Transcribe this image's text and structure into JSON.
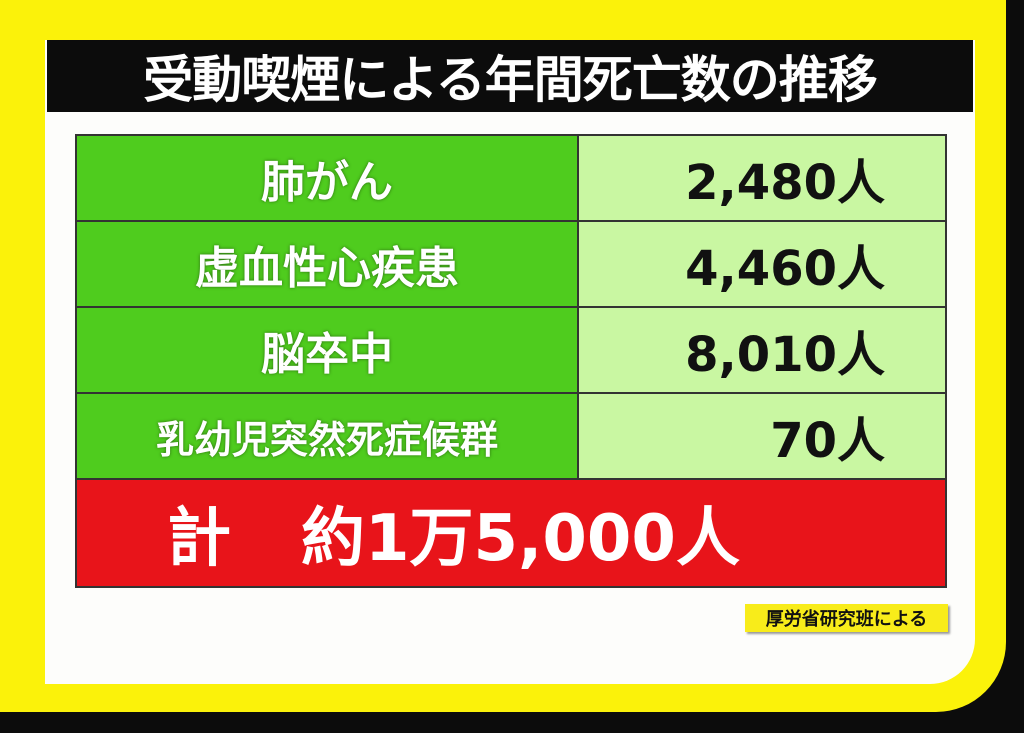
{
  "title": "受動喫煙による年間死亡数の推移",
  "chart_data": {
    "type": "table",
    "title": "受動喫煙による年間死亡数の推移",
    "rows": [
      {
        "label": "肺がん",
        "value": "2,480人"
      },
      {
        "label": "虚血性心疾患",
        "value": "4,460人"
      },
      {
        "label": "脳卒中",
        "value": "8,010人"
      },
      {
        "label": "乳幼児突然死症候群",
        "value": "70人"
      }
    ],
    "total": {
      "label": "計",
      "value": "約1万5,000人"
    }
  },
  "source": "厚労省研究班による",
  "colors": {
    "background": "#fbf20a",
    "label_cell": "#4fcc1e",
    "value_cell": "#c9f7a2",
    "total_row": "#e8141a",
    "title_bar": "#0c0c0c"
  }
}
